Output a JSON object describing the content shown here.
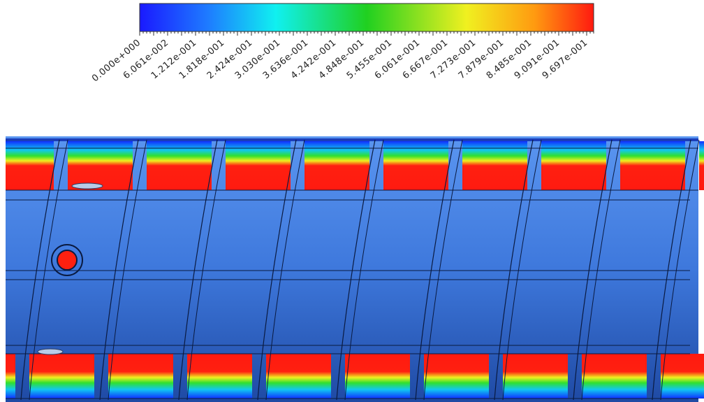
{
  "colorbar": {
    "labels": [
      "0.000e+000",
      "6.061e-002",
      "1.212e-001",
      "1.818e-001",
      "2.424e-001",
      "3.030e-001",
      "3.636e-001",
      "4.242e-001",
      "4.848e-001",
      "5.455e-001",
      "6.061e-001",
      "6.667e-001",
      "7.273e-001",
      "7.879e-001",
      "8.485e-001",
      "9.091e-001",
      "9.697e-001"
    ]
  }
}
